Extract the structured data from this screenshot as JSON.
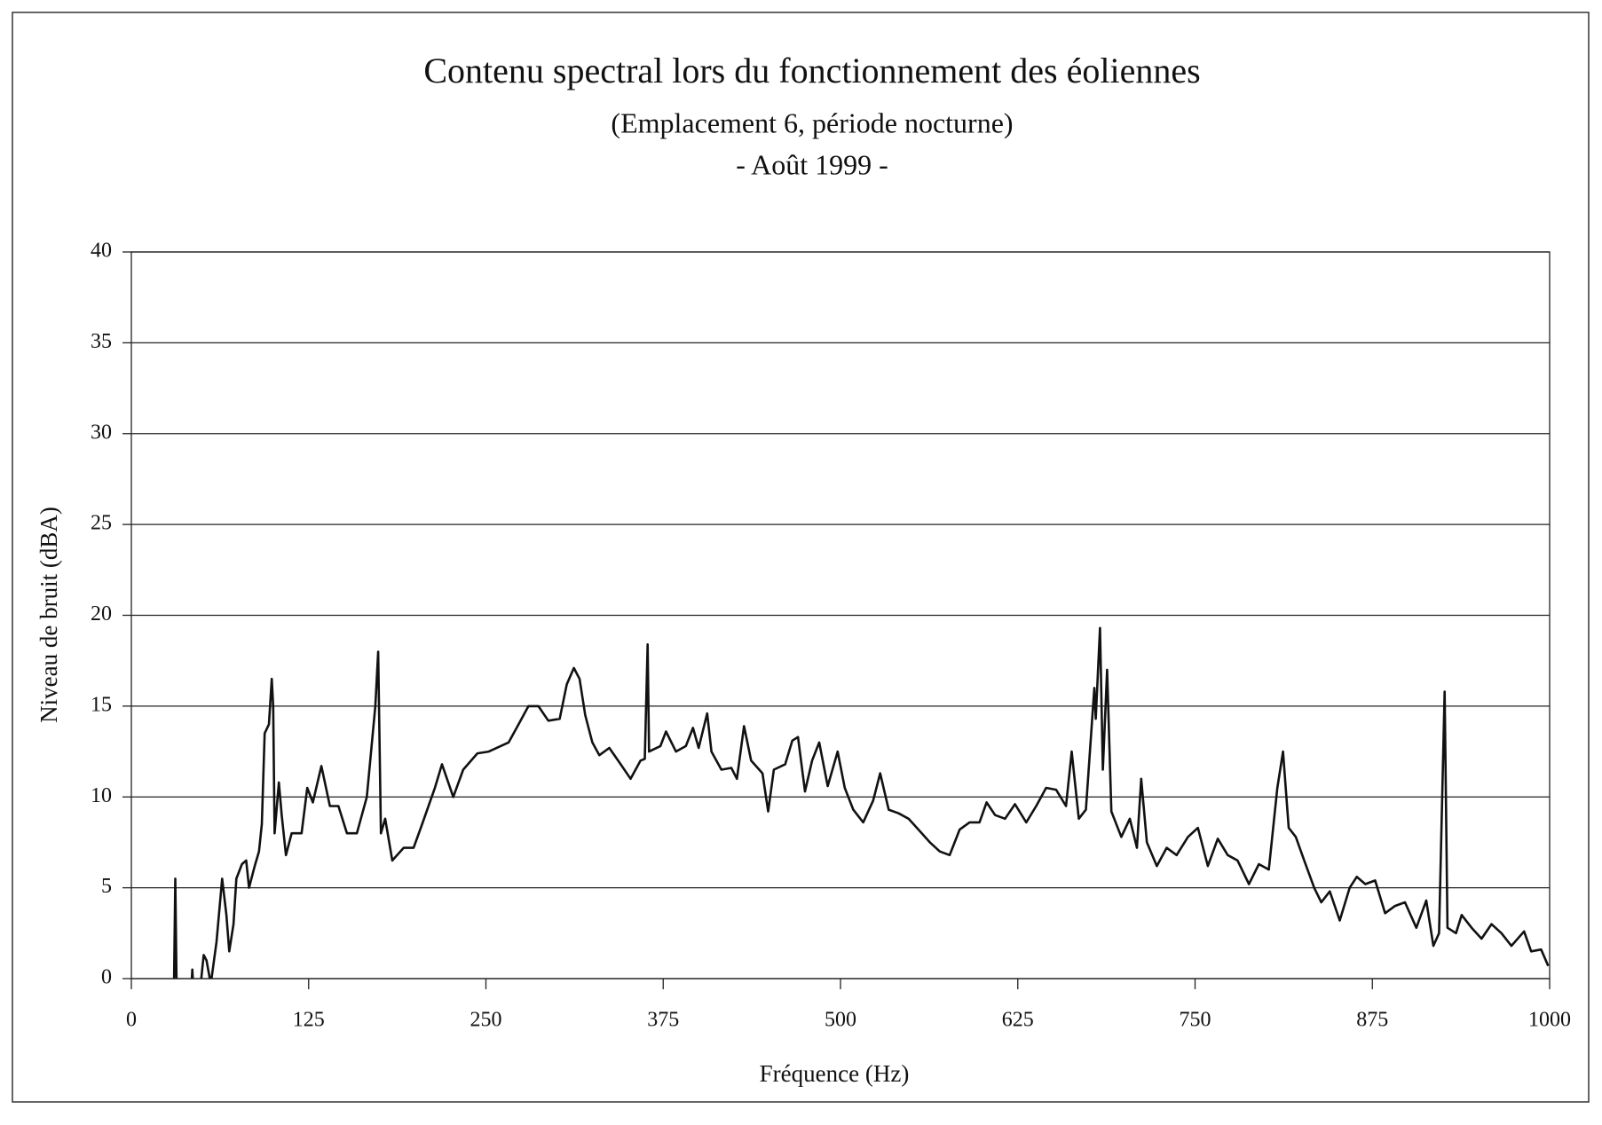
{
  "chart_data": {
    "type": "line",
    "title": "Contenu spectral lors du fonctionnement des éoliennes",
    "subtitle": [
      "(Emplacement 6, période nocturne)",
      "- Août 1999 -"
    ],
    "x_label": "Fréquence (Hz)",
    "y_label": "Niveau de bruit (dBA)",
    "color": "#111111",
    "grid": true,
    "xlim": [
      0,
      1000
    ],
    "xticks": [
      0,
      125,
      250,
      375,
      500,
      625,
      750,
      875,
      1000
    ],
    "ylim": [
      0,
      40
    ],
    "yticks": [
      0,
      5,
      10,
      15,
      20,
      25,
      30,
      35,
      40
    ],
    "x": [
      30,
      31,
      32,
      38,
      42,
      43,
      44,
      46,
      48,
      51,
      53,
      56,
      60,
      64,
      67,
      69,
      72,
      74,
      78,
      81,
      83,
      87,
      90,
      92,
      94,
      97,
      99,
      100,
      101,
      104,
      106,
      109,
      113,
      120,
      124,
      128,
      134,
      140,
      146,
      152,
      159,
      166,
      172,
      174,
      176,
      179,
      184,
      192,
      199,
      205,
      214,
      219,
      227,
      234,
      244,
      252,
      266,
      273,
      280,
      287,
      294,
      302,
      307,
      312,
      316,
      320,
      325,
      330,
      337,
      345,
      352,
      359,
      362,
      364,
      365,
      373,
      377,
      384,
      391,
      396,
      400,
      406,
      409,
      416,
      423,
      427,
      432,
      437,
      445,
      449,
      453,
      461,
      466,
      470,
      475,
      480,
      485,
      491,
      498,
      503,
      509,
      516,
      523,
      528,
      534,
      541,
      548,
      555,
      563,
      570,
      577,
      584,
      591,
      598,
      603,
      609,
      616,
      623,
      631,
      638,
      645,
      652,
      659,
      663,
      668,
      673,
      679,
      680,
      683,
      685,
      688,
      691,
      698,
      704,
      709,
      712,
      716,
      723,
      730,
      737,
      745,
      752,
      759,
      766,
      773,
      780,
      788,
      795,
      802,
      808,
      812,
      816,
      821,
      827,
      834,
      839,
      845,
      852,
      859,
      864,
      870,
      877,
      884,
      891,
      898,
      906,
      913,
      918,
      922,
      926,
      928,
      934,
      938,
      945,
      952,
      959,
      966,
      973,
      982,
      987,
      994,
      999
    ],
    "values": [
      -1,
      5.5,
      -1,
      null,
      -1,
      0.5,
      -1,
      null,
      -1,
      1.3,
      1,
      -0.3,
      2,
      5.5,
      3.5,
      1.5,
      3,
      5.5,
      6.3,
      6.5,
      5,
      6.2,
      7,
      8.5,
      13.5,
      14,
      16.5,
      15,
      8,
      10.8,
      9,
      6.8,
      8,
      8,
      10.5,
      9.7,
      11.7,
      9.5,
      9.5,
      8,
      8,
      10,
      15,
      18,
      8,
      8.8,
      6.5,
      7.2,
      7.2,
      8.5,
      10.5,
      11.8,
      10,
      11.5,
      12.4,
      12.5,
      13,
      14,
      15,
      15,
      14.2,
      14.3,
      16.2,
      17.1,
      16.5,
      14.5,
      13,
      12.3,
      12.7,
      11.8,
      11,
      12,
      12.1,
      18.4,
      12.5,
      12.8,
      13.6,
      12.5,
      12.8,
      13.8,
      12.7,
      14.6,
      12.5,
      11.5,
      11.6,
      11,
      13.9,
      12,
      11.3,
      9.2,
      11.5,
      11.8,
      13.1,
      13.3,
      10.3,
      12,
      13,
      10.6,
      12.5,
      10.5,
      9.3,
      8.6,
      9.8,
      11.3,
      9.3,
      9.1,
      8.8,
      8.2,
      7.5,
      7,
      6.8,
      8.2,
      8.6,
      8.6,
      9.7,
      9,
      8.8,
      9.6,
      8.6,
      9.5,
      10.5,
      10.4,
      9.5,
      12.5,
      8.8,
      9.3,
      16,
      14.3,
      19.3,
      11.5,
      17,
      9.2,
      7.8,
      8.8,
      7.2,
      11,
      7.5,
      6.2,
      7.2,
      6.8,
      7.8,
      8.3,
      6.2,
      7.7,
      6.8,
      6.5,
      5.2,
      6.3,
      6,
      10.5,
      12.5,
      8.3,
      7.8,
      6.5,
      5,
      4.2,
      4.8,
      3.2,
      5,
      5.6,
      5.2,
      5.4,
      3.6,
      4,
      4.2,
      2.8,
      4.3,
      1.8,
      2.5,
      15.8,
      2.8,
      2.5,
      3.5,
      2.8,
      2.2,
      3,
      2.5,
      1.8,
      2.6,
      1.5,
      1.6,
      0.7
    ]
  }
}
